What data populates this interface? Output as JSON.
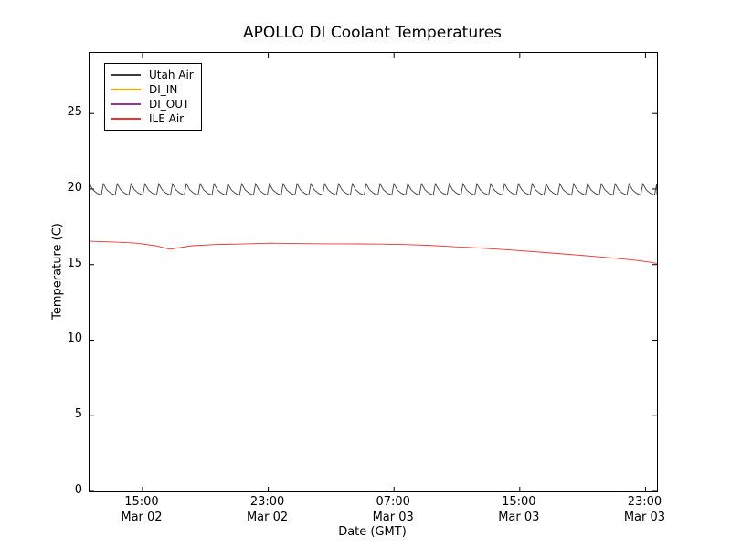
{
  "chart_data": {
    "type": "line",
    "title": "APOLLO DI Coolant Temperatures",
    "xlabel": "Date (GMT)",
    "ylabel": "Temperature (C)",
    "ylim": [
      0,
      29
    ],
    "yticks": [
      0,
      5,
      10,
      15,
      20,
      25
    ],
    "x_axis": {
      "span_hours": 36.1
    },
    "xticks": [
      {
        "hour": 3.37,
        "time": "15:00",
        "date": "Mar 02"
      },
      {
        "hour": 11.37,
        "time": "23:00",
        "date": "Mar 02"
      },
      {
        "hour": 19.37,
        "time": "07:00",
        "date": "Mar 03"
      },
      {
        "hour": 27.37,
        "time": "15:00",
        "date": "Mar 03"
      },
      {
        "hour": 35.37,
        "time": "23:00",
        "date": "Mar 03"
      }
    ],
    "grid": false,
    "legend_position": "upper-left",
    "series": [
      {
        "name": "Utah Air",
        "color": "#3d3d3d",
        "pattern": {
          "shape": "sawtooth",
          "period_hours": 0.88,
          "peak": 20.35,
          "trough": 19.6,
          "span": [
            0,
            36.1
          ]
        }
      },
      {
        "name": "DI_IN",
        "color": "#ffa500",
        "points": []
      },
      {
        "name": "DI_OUT",
        "color": "#993399",
        "points": []
      },
      {
        "name": "ILE Air",
        "color": "#ee3333",
        "points": [
          [
            0.0,
            16.55
          ],
          [
            1.5,
            16.5
          ],
          [
            3.0,
            16.42
          ],
          [
            4.2,
            16.25
          ],
          [
            5.1,
            16.02
          ],
          [
            5.6,
            16.1
          ],
          [
            6.5,
            16.25
          ],
          [
            8.0,
            16.33
          ],
          [
            10.0,
            16.38
          ],
          [
            11.5,
            16.42
          ],
          [
            13.0,
            16.4
          ],
          [
            15.0,
            16.38
          ],
          [
            17.0,
            16.37
          ],
          [
            18.5,
            16.36
          ],
          [
            20.0,
            16.33
          ],
          [
            21.5,
            16.28
          ],
          [
            23.0,
            16.2
          ],
          [
            24.5,
            16.12
          ],
          [
            26.0,
            16.02
          ],
          [
            27.3,
            15.93
          ],
          [
            29.0,
            15.8
          ],
          [
            30.5,
            15.68
          ],
          [
            32.0,
            15.55
          ],
          [
            33.5,
            15.42
          ],
          [
            34.8,
            15.28
          ],
          [
            35.5,
            15.18
          ],
          [
            36.1,
            15.08
          ]
        ]
      }
    ]
  }
}
